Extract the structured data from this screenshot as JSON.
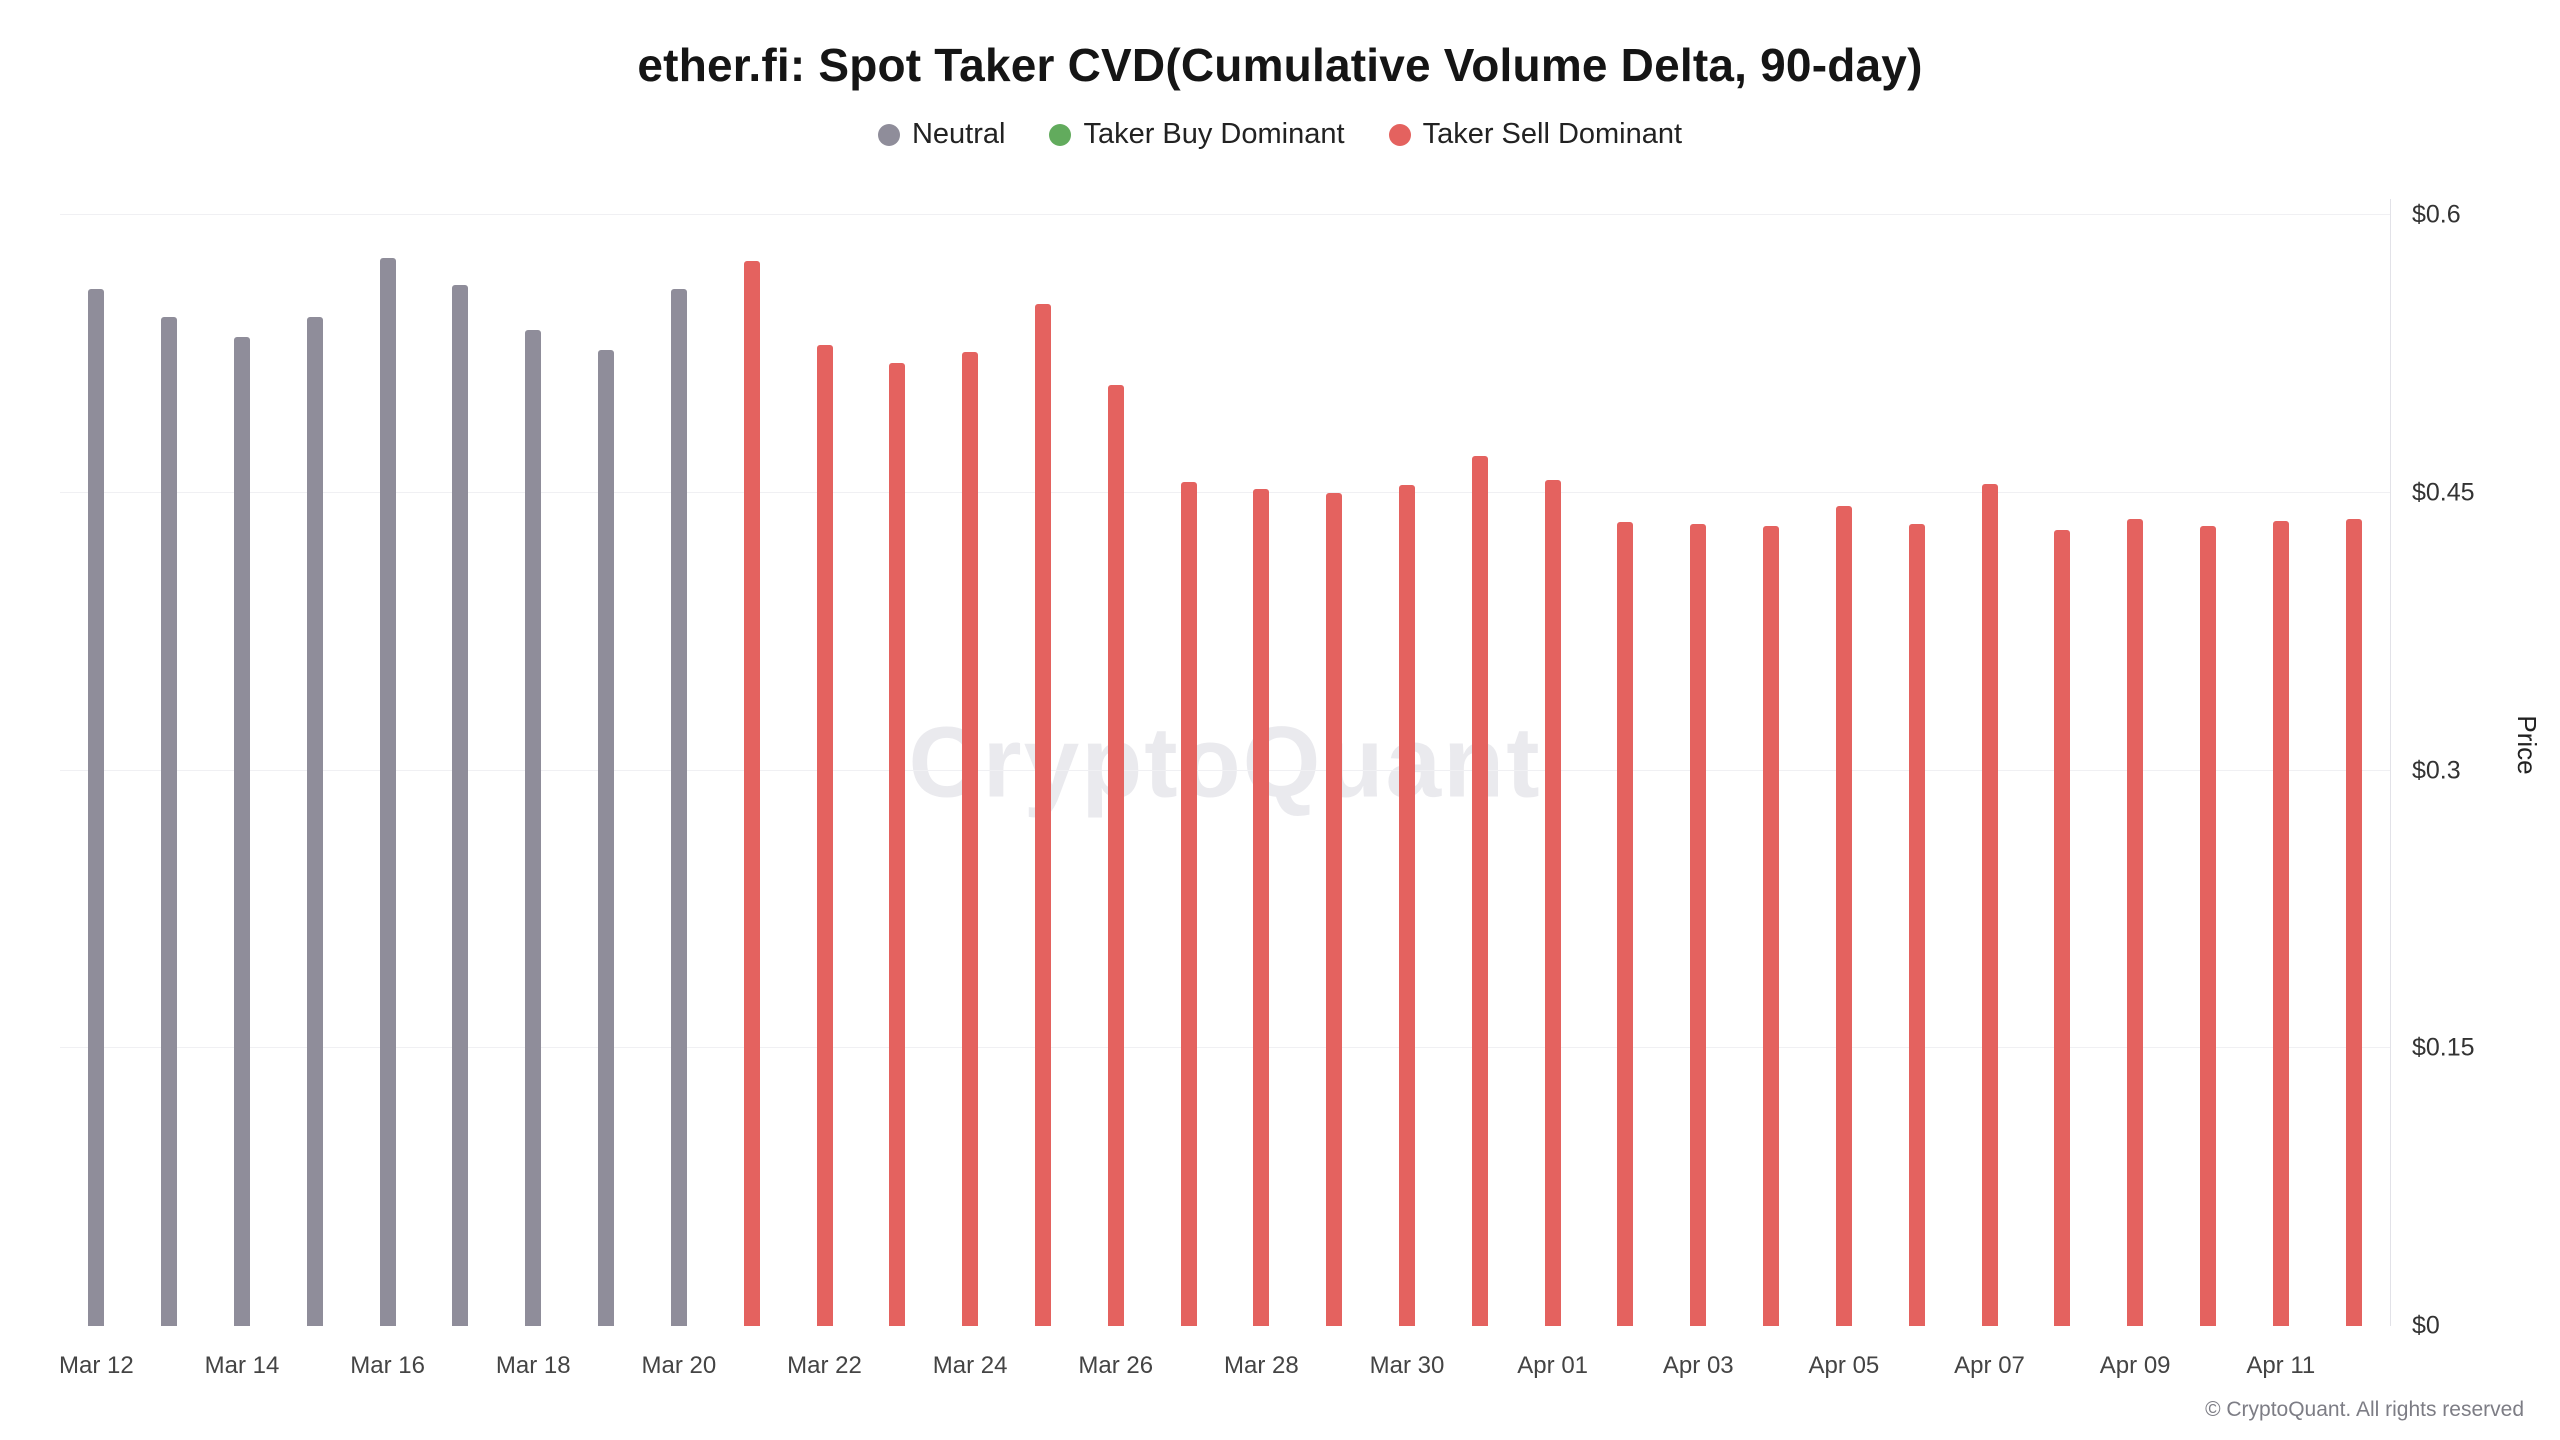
{
  "title": "ether.fi: Spot Taker CVD(Cumulative Volume Delta, 90-day)",
  "watermark": "CryptoQuant",
  "footer": "© CryptoQuant. All rights reserved",
  "legend": [
    {
      "label": "Neutral",
      "color": "#8f8d9a",
      "key": "neutral"
    },
    {
      "label": "Taker Buy Dominant",
      "color": "#62ab5d",
      "key": "buy"
    },
    {
      "label": "Taker Sell Dominant",
      "color": "#e4625f",
      "key": "sell"
    }
  ],
  "colors": {
    "neutral": "#8f8d9a",
    "buy": "#62ab5d",
    "sell": "#e4625f"
  },
  "chart_data": {
    "type": "bar",
    "title": "ether.fi: Spot Taker CVD(Cumulative Volume Delta, 90-day)",
    "xlabel": "",
    "ylabel": "Price",
    "ylim": [
      0,
      0.6
    ],
    "yticks": [
      "$0",
      "$0.15",
      "$0.3",
      "$0.45",
      "$0.6"
    ],
    "ytick_values": [
      0,
      0.15,
      0.3,
      0.45,
      0.6
    ],
    "grid": "horizontal",
    "legend_position": "top",
    "x_tick_every": 2,
    "bars": [
      {
        "date": "Mar 12",
        "value": 0.56,
        "status": "neutral"
      },
      {
        "date": "Mar 13",
        "value": 0.545,
        "status": "neutral"
      },
      {
        "date": "Mar 14",
        "value": 0.534,
        "status": "neutral"
      },
      {
        "date": "Mar 15",
        "value": 0.545,
        "status": "neutral"
      },
      {
        "date": "Mar 16",
        "value": 0.577,
        "status": "neutral"
      },
      {
        "date": "Mar 17",
        "value": 0.562,
        "status": "neutral"
      },
      {
        "date": "Mar 18",
        "value": 0.538,
        "status": "neutral"
      },
      {
        "date": "Mar 19",
        "value": 0.527,
        "status": "neutral"
      },
      {
        "date": "Mar 20",
        "value": 0.56,
        "status": "neutral"
      },
      {
        "date": "Mar 21",
        "value": 0.575,
        "status": "sell"
      },
      {
        "date": "Mar 22",
        "value": 0.53,
        "status": "sell"
      },
      {
        "date": "Mar 23",
        "value": 0.52,
        "status": "sell"
      },
      {
        "date": "Mar 24",
        "value": 0.526,
        "status": "sell"
      },
      {
        "date": "Mar 25",
        "value": 0.552,
        "status": "sell"
      },
      {
        "date": "Mar 26",
        "value": 0.508,
        "status": "sell"
      },
      {
        "date": "Mar 27",
        "value": 0.456,
        "status": "sell"
      },
      {
        "date": "Mar 28",
        "value": 0.452,
        "status": "sell"
      },
      {
        "date": "Mar 29",
        "value": 0.45,
        "status": "sell"
      },
      {
        "date": "Mar 30",
        "value": 0.454,
        "status": "sell"
      },
      {
        "date": "Mar 31",
        "value": 0.47,
        "status": "sell"
      },
      {
        "date": "Apr 01",
        "value": 0.457,
        "status": "sell"
      },
      {
        "date": "Apr 02",
        "value": 0.434,
        "status": "sell"
      },
      {
        "date": "Apr 03",
        "value": 0.433,
        "status": "sell"
      },
      {
        "date": "Apr 04",
        "value": 0.432,
        "status": "sell"
      },
      {
        "date": "Apr 05",
        "value": 0.443,
        "status": "sell"
      },
      {
        "date": "Apr 06",
        "value": 0.433,
        "status": "sell"
      },
      {
        "date": "Apr 07",
        "value": 0.455,
        "status": "sell"
      },
      {
        "date": "Apr 08",
        "value": 0.43,
        "status": "sell"
      },
      {
        "date": "Apr 09",
        "value": 0.436,
        "status": "sell"
      },
      {
        "date": "Apr 10",
        "value": 0.432,
        "status": "sell"
      },
      {
        "date": "Apr 11",
        "value": 0.435,
        "status": "sell"
      },
      {
        "date": "Apr 12",
        "value": 0.436,
        "status": "sell"
      }
    ],
    "x_tick_labels": [
      "Mar 12",
      "Mar 14",
      "Mar 16",
      "Mar 18",
      "Mar 20",
      "Mar 22",
      "Mar 24",
      "Mar 26",
      "Mar 28",
      "Mar 30",
      "Apr 01",
      "Apr 03",
      "Apr 05",
      "Apr 07",
      "Apr 09",
      "Apr 11"
    ]
  }
}
